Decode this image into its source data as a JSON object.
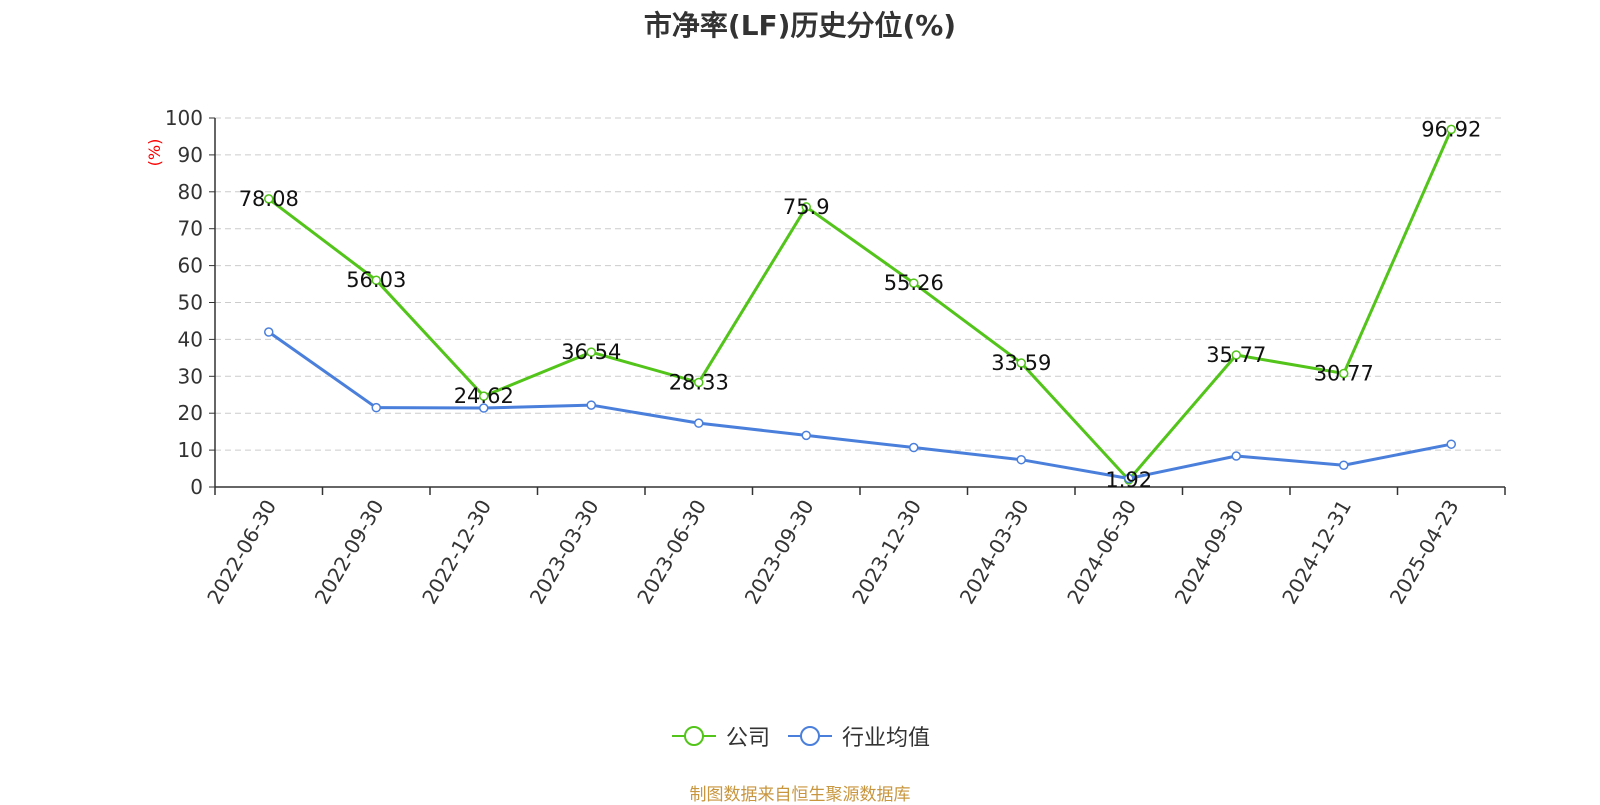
{
  "title": "市净率(LF)历史分位(%)",
  "source_note": "制图数据来自恒生聚源数据库",
  "legend": {
    "items": [
      {
        "label": "公司",
        "color": "#52c41a"
      },
      {
        "label": "行业均值",
        "color": "#4a7fdc"
      }
    ]
  },
  "chart_data": {
    "type": "line",
    "title": "市净率(LF)历史分位(%)",
    "ylabel": "(%)",
    "ylabel_color": "#ff0000",
    "ylim": [
      0,
      100
    ],
    "yticks": [
      0,
      10,
      20,
      30,
      40,
      50,
      60,
      70,
      80,
      90,
      100
    ],
    "grid": true,
    "legend_position": "bottom",
    "categories": [
      "2022-06-30",
      "2022-09-30",
      "2022-12-30",
      "2023-03-30",
      "2023-06-30",
      "2023-09-30",
      "2023-12-30",
      "2024-03-30",
      "2024-06-30",
      "2024-09-30",
      "2024-12-31",
      "2025-04-23"
    ],
    "series": [
      {
        "name": "公司",
        "color": "#52c41a",
        "show_labels": true,
        "values": [
          78.08,
          56.03,
          24.62,
          36.54,
          28.33,
          75.9,
          55.26,
          33.59,
          1.92,
          35.77,
          30.77,
          96.92
        ]
      },
      {
        "name": "行业均值",
        "color": "#4a7fdc",
        "show_labels": false,
        "values": [
          42.0,
          21.5,
          21.4,
          22.2,
          17.3,
          14.0,
          10.7,
          7.4,
          2.3,
          8.4,
          5.9,
          11.6
        ]
      }
    ]
  }
}
